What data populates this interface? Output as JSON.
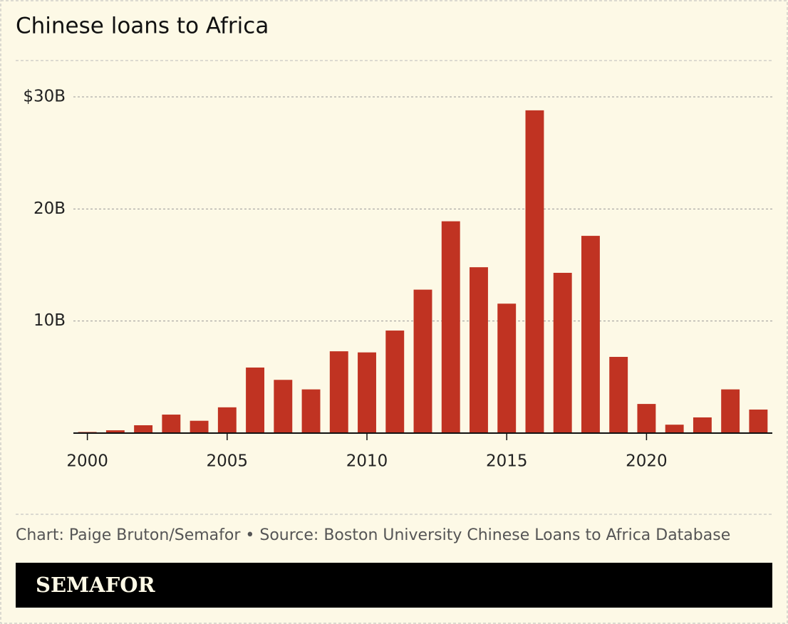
{
  "chart_data": {
    "type": "bar",
    "title": "Chinese loans to Africa",
    "x": [
      2000,
      2001,
      2002,
      2003,
      2004,
      2005,
      2006,
      2007,
      2008,
      2009,
      2010,
      2011,
      2012,
      2013,
      2014,
      2015,
      2016,
      2017,
      2018,
      2019,
      2020,
      2021,
      2022,
      2023,
      2024
    ],
    "values": [
      0.1,
      0.25,
      0.7,
      1.65,
      1.1,
      2.3,
      5.85,
      4.75,
      3.9,
      7.3,
      7.2,
      9.15,
      12.8,
      18.9,
      14.8,
      11.55,
      28.8,
      14.3,
      17.6,
      6.8,
      2.6,
      0.75,
      1.4,
      3.9,
      2.1
    ],
    "color": "#c03322",
    "xlim": [
      1999.5,
      2024.5
    ],
    "xticks": [
      2000,
      2005,
      2010,
      2015,
      2020
    ],
    "ylim": [
      0,
      30
    ],
    "yticks": [
      {
        "value": 10,
        "label": "10B"
      },
      {
        "value": 20,
        "label": "20B"
      },
      {
        "value": 30,
        "label": "$30B"
      }
    ],
    "grid": true,
    "source": "Chart: Paige Bruton/Semafor • Source: Boston University Chinese Loans to Africa Database",
    "brand": "SEMAFOR"
  }
}
